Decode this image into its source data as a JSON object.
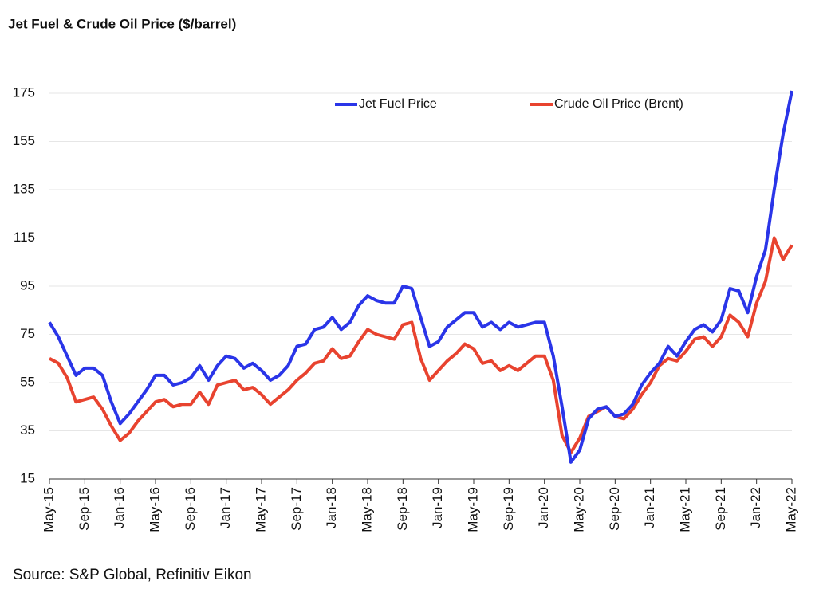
{
  "chart_data": {
    "type": "line",
    "title": "Jet Fuel & Crude Oil Price ($/barrel)",
    "source": "Source: S&P Global, Refinitiv Eikon",
    "categories": [
      "May-15",
      null,
      null,
      null,
      "Sep-15",
      null,
      null,
      null,
      "Jan-16",
      null,
      null,
      null,
      "May-16",
      null,
      null,
      null,
      "Sep-16",
      null,
      null,
      null,
      "Jan-17",
      null,
      null,
      null,
      "May-17",
      null,
      null,
      null,
      "Sep-17",
      null,
      null,
      null,
      "Jan-18",
      null,
      null,
      null,
      "May-18",
      null,
      null,
      null,
      "Sep-18",
      null,
      null,
      null,
      "Jan-19",
      null,
      null,
      null,
      "May-19",
      null,
      null,
      null,
      "Sep-19",
      null,
      null,
      null,
      "Jan-20",
      null,
      null,
      null,
      "May-20",
      null,
      null,
      null,
      "Sep-20",
      null,
      null,
      null,
      "Jan-21",
      null,
      null,
      null,
      "May-21",
      null,
      null,
      null,
      "Sep-21",
      null,
      null,
      null,
      "Jan-22",
      null,
      null,
      null,
      "May-22"
    ],
    "series": [
      {
        "name": "Jet Fuel Price",
        "color": "#2a35e8",
        "values": [
          80,
          74,
          66,
          58,
          61,
          61,
          58,
          47,
          38,
          42,
          47,
          52,
          58,
          58,
          54,
          55,
          57,
          62,
          56,
          62,
          66,
          65,
          61,
          63,
          60,
          56,
          58,
          62,
          70,
          71,
          77,
          78,
          82,
          77,
          80,
          87,
          91,
          89,
          88,
          88,
          95,
          94,
          82,
          70,
          72,
          78,
          81,
          84,
          84,
          78,
          80,
          77,
          80,
          78,
          79,
          80,
          80,
          66,
          45,
          22,
          27,
          40,
          44,
          45,
          41,
          42,
          46,
          54,
          59,
          63,
          70,
          66,
          72,
          77,
          79,
          76,
          81,
          94,
          93,
          84,
          99,
          110,
          135,
          158,
          176
        ]
      },
      {
        "name": "Crude Oil Price (Brent)",
        "color": "#e8432f",
        "values": [
          65,
          63,
          57,
          47,
          48,
          49,
          44,
          37,
          31,
          34,
          39,
          43,
          47,
          48,
          45,
          46,
          46,
          51,
          46,
          54,
          55,
          56,
          52,
          53,
          50,
          46,
          49,
          52,
          56,
          59,
          63,
          64,
          69,
          65,
          66,
          72,
          77,
          75,
          74,
          73,
          79,
          80,
          65,
          56,
          60,
          64,
          67,
          71,
          69,
          63,
          64,
          60,
          62,
          60,
          63,
          66,
          66,
          56,
          33,
          26,
          32,
          41,
          43,
          45,
          41,
          40,
          44,
          50,
          55,
          62,
          65,
          64,
          68,
          73,
          74,
          70,
          74,
          83,
          80,
          74,
          88,
          97,
          115,
          106,
          112
        ]
      }
    ],
    "ylim": [
      15,
      175
    ],
    "yticks": [
      15,
      35,
      55,
      75,
      95,
      115,
      135,
      155,
      175
    ],
    "grid": true,
    "legend": "top"
  }
}
